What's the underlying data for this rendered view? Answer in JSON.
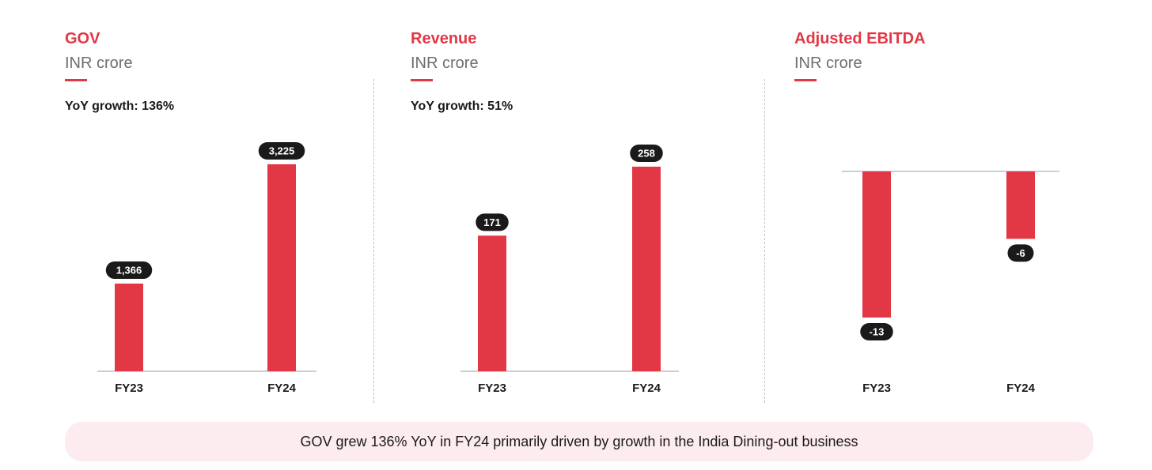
{
  "colors": {
    "accent": "#e23744",
    "bar": "#e23744",
    "label_bg": "#1a1a1a",
    "footer_bg": "#fdecef"
  },
  "panels": [
    {
      "title": "GOV",
      "subtitle": "INR crore",
      "growth": "YoY growth: 136%"
    },
    {
      "title": "Revenue",
      "subtitle": "INR crore",
      "growth": "YoY growth: 51%"
    },
    {
      "title": "Adjusted EBITDA",
      "subtitle": "INR crore",
      "growth": ""
    }
  ],
  "chart_data": [
    {
      "type": "bar",
      "title": "GOV",
      "subtitle": "INR crore",
      "categories": [
        "FY23",
        "FY24"
      ],
      "values": [
        1366,
        3225
      ],
      "value_labels": [
        "1,366",
        "3,225"
      ],
      "ylim": [
        0,
        3225
      ]
    },
    {
      "type": "bar",
      "title": "Revenue",
      "subtitle": "INR crore",
      "categories": [
        "FY23",
        "FY24"
      ],
      "values": [
        171,
        258
      ],
      "value_labels": [
        "171",
        "258"
      ],
      "ylim": [
        0,
        258
      ]
    },
    {
      "type": "bar",
      "title": "Adjusted EBITDA",
      "subtitle": "INR crore",
      "categories": [
        "FY23",
        "FY24"
      ],
      "values": [
        -13,
        -6
      ],
      "value_labels": [
        "-13",
        "-6"
      ],
      "ylim": [
        -13,
        0
      ]
    }
  ],
  "footer": {
    "text": "GOV grew 136% YoY in FY24 primarily driven by growth in the India Dining-out business"
  }
}
